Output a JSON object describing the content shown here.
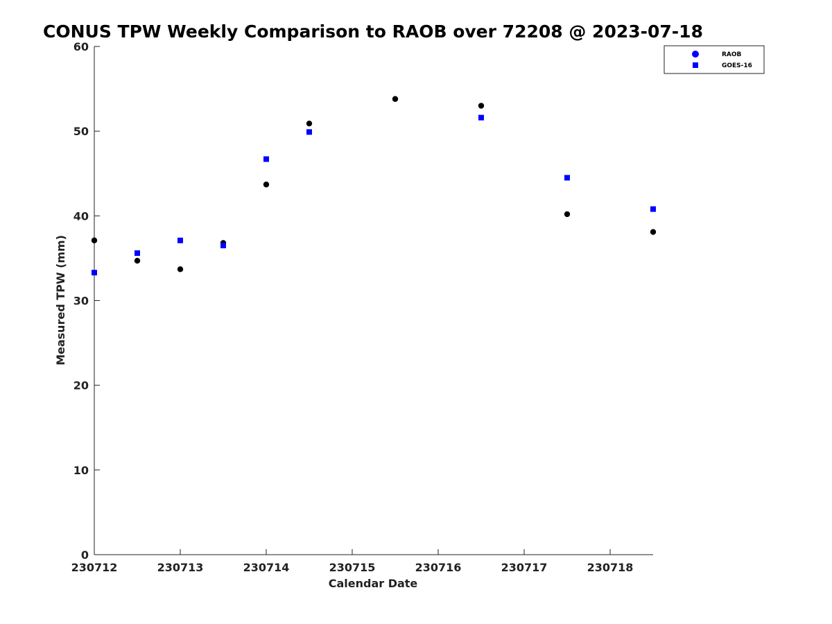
{
  "chart_data": {
    "type": "scatter",
    "title": "CONUS TPW Weekly Comparison to RAOB over 72208 @ 2023-07-18",
    "xlabel": "Calendar Date",
    "ylabel": "Measured TPW (mm)",
    "xlim": [
      "230712",
      "230718 12Z"
    ],
    "ylim": [
      0,
      60
    ],
    "x_ticks": [
      "230712",
      "230713",
      "230714",
      "230715",
      "230716",
      "230717",
      "230718"
    ],
    "y_ticks": [
      0,
      10,
      20,
      30,
      40,
      50,
      60
    ],
    "grid": false,
    "legend_position": "top-right",
    "series": [
      {
        "name": "RAOB",
        "marker": "circle",
        "color": "#000000",
        "legend_color": "#0000ff",
        "points": [
          {
            "x": "230712 00Z",
            "y": 37.1
          },
          {
            "x": "230712 12Z",
            "y": 34.7
          },
          {
            "x": "230713 00Z",
            "y": 33.7
          },
          {
            "x": "230713 12Z",
            "y": 36.8
          },
          {
            "x": "230714 00Z",
            "y": 43.7
          },
          {
            "x": "230714 12Z",
            "y": 50.9
          },
          {
            "x": "230715 12Z",
            "y": 53.8
          },
          {
            "x": "230716 12Z",
            "y": 53.0
          },
          {
            "x": "230717 12Z",
            "y": 40.2
          },
          {
            "x": "230718 12Z",
            "y": 38.1
          }
        ]
      },
      {
        "name": "GOES-16",
        "marker": "square",
        "color": "#0000ff",
        "points": [
          {
            "x": "230712 00Z",
            "y": 33.3
          },
          {
            "x": "230712 12Z",
            "y": 35.6
          },
          {
            "x": "230713 00Z",
            "y": 37.1
          },
          {
            "x": "230713 12Z",
            "y": 36.5
          },
          {
            "x": "230714 00Z",
            "y": 46.7
          },
          {
            "x": "230714 12Z",
            "y": 49.9
          },
          {
            "x": "230716 12Z",
            "y": 51.6
          },
          {
            "x": "230717 12Z",
            "y": 44.5
          },
          {
            "x": "230718 12Z",
            "y": 40.8
          }
        ]
      }
    ]
  }
}
